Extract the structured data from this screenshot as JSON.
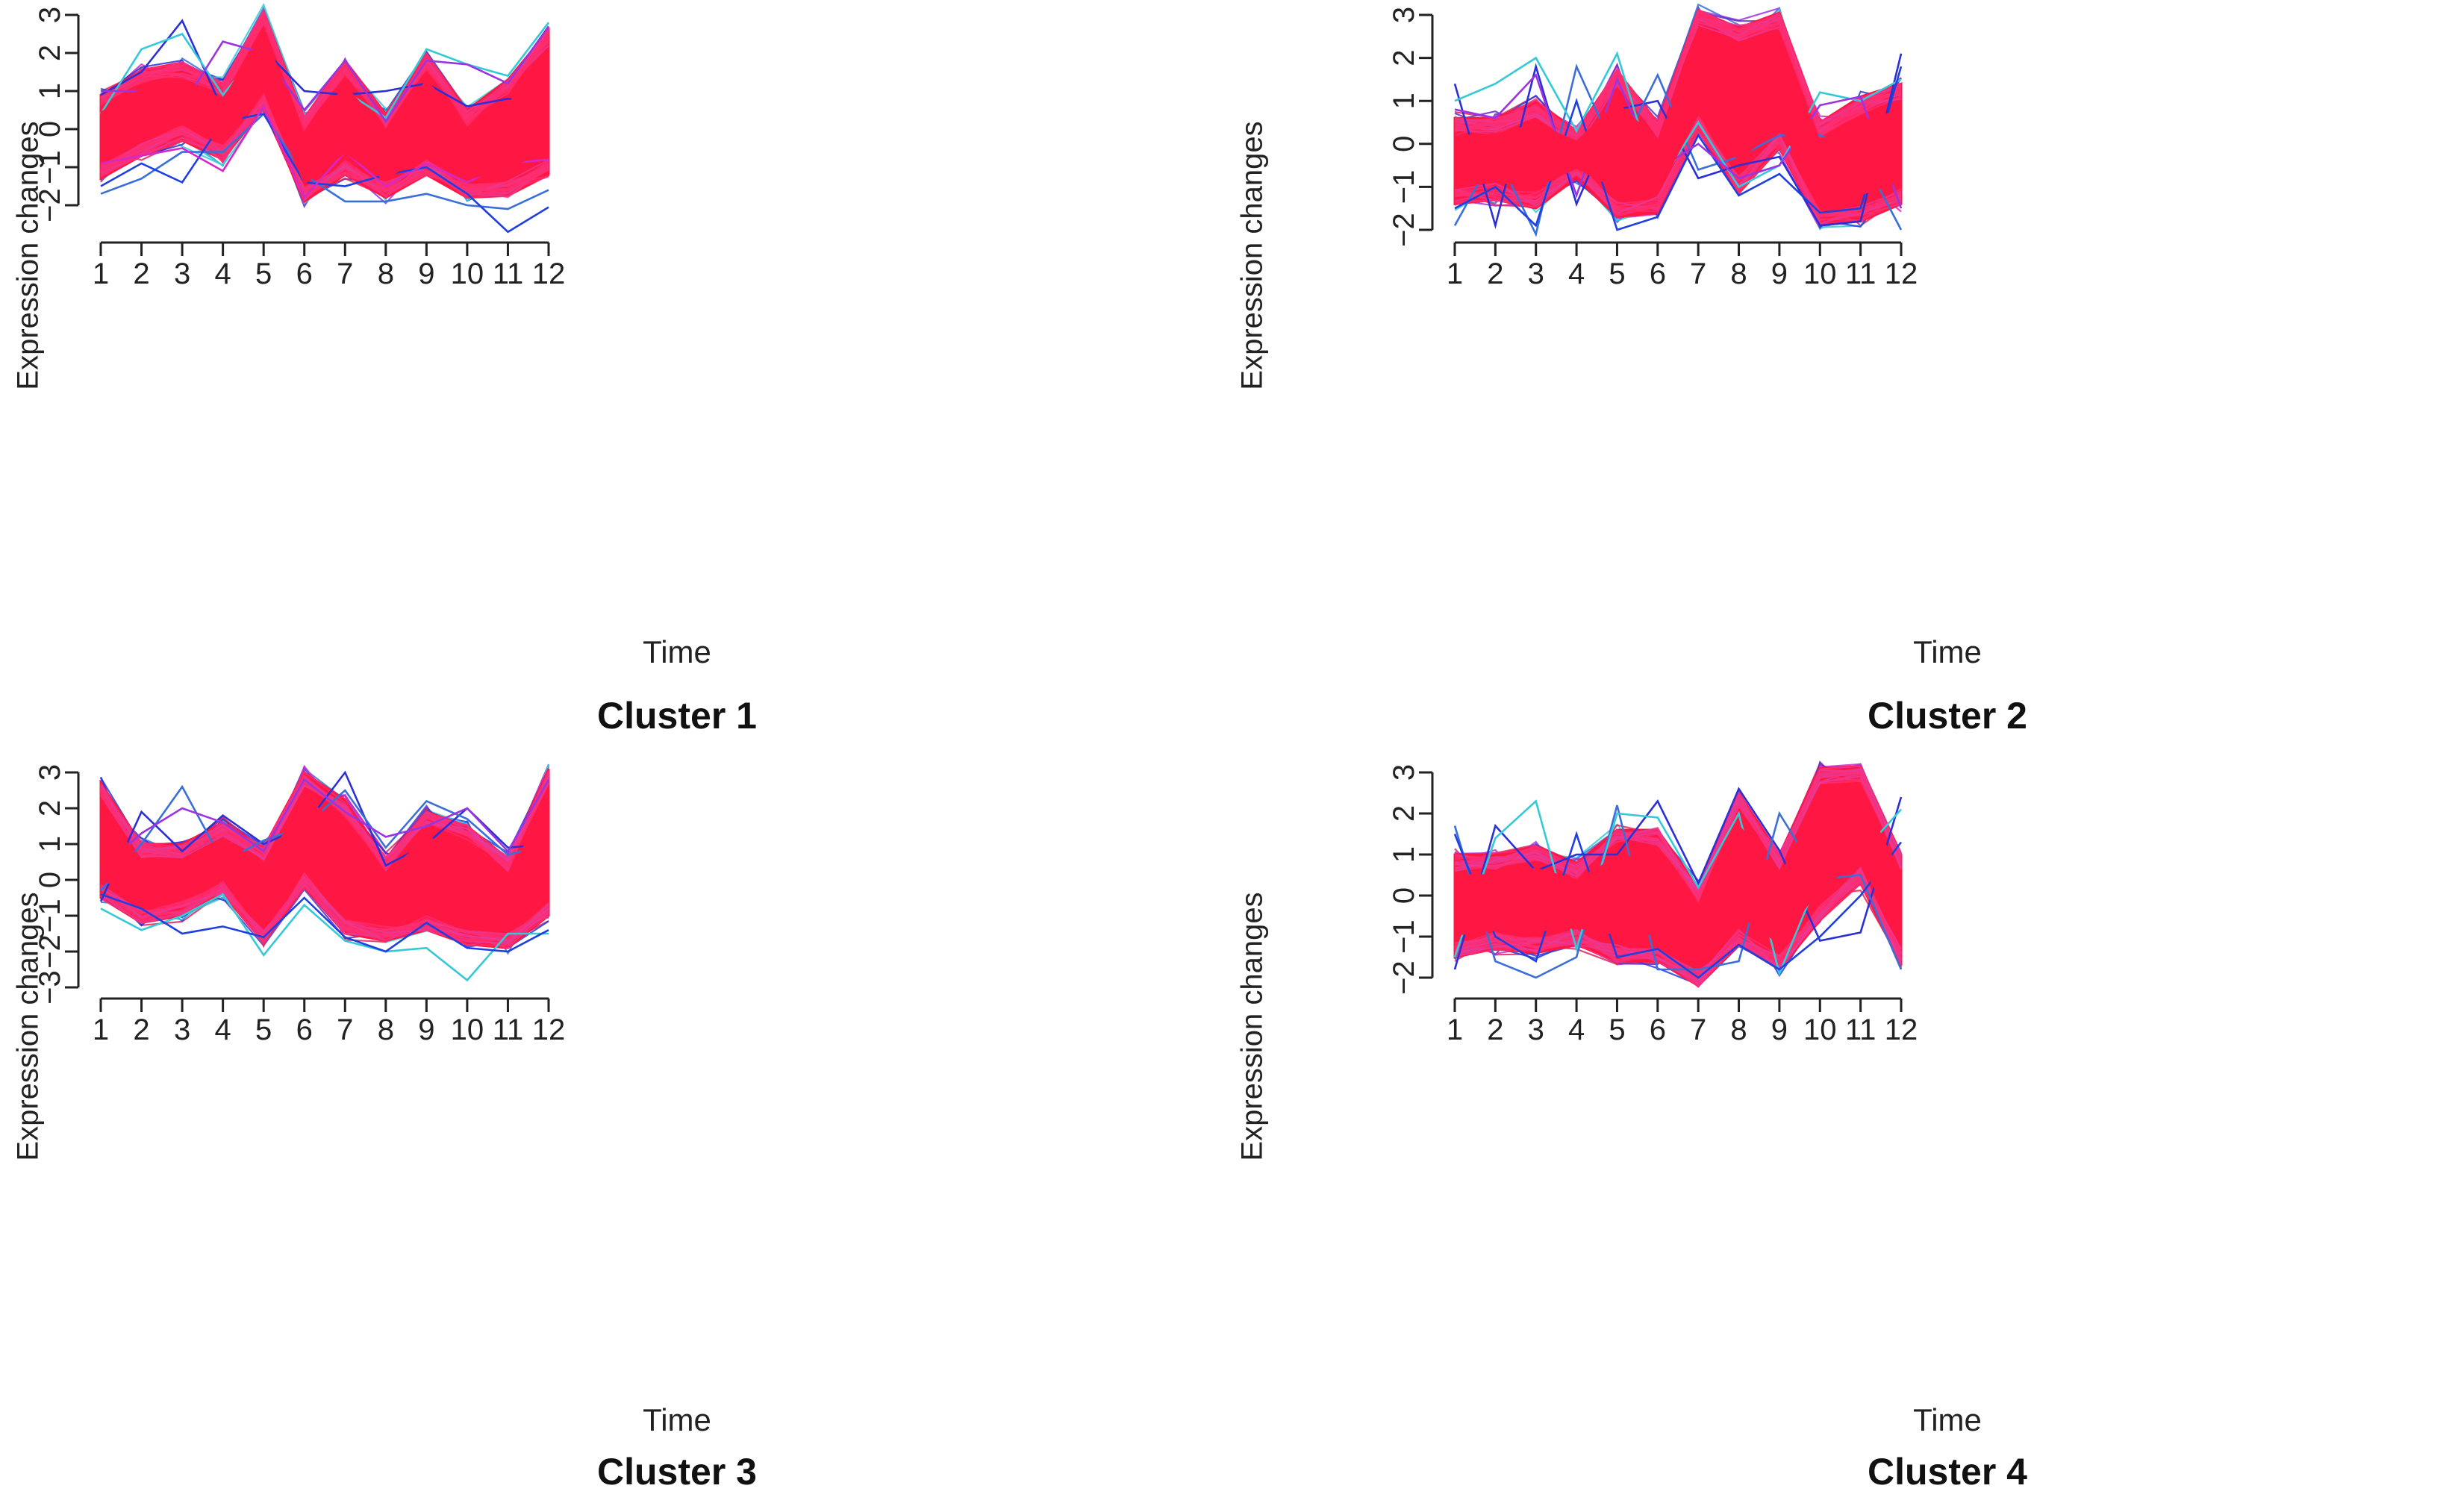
{
  "colors": {
    "main": "#ff1744",
    "palette": [
      "#2a2fd6",
      "#3a6fd8",
      "#35c9d8",
      "#1f3fe0",
      "#9b34e0",
      "#d428c8",
      "#e0245e",
      "#5a30c8"
    ],
    "axis": "#222222"
  },
  "chart_data": [
    {
      "type": "line",
      "title": "Cluster 1",
      "xlabel": "Time",
      "ylabel": "Expression changes",
      "x": [
        1,
        2,
        3,
        4,
        5,
        6,
        7,
        8,
        9,
        10,
        11,
        12
      ],
      "ylim": [
        -2,
        3
      ],
      "yticks": [
        -2,
        -1,
        0,
        1,
        2,
        3
      ],
      "band_upper": [
        0.9,
        1.55,
        1.75,
        1.2,
        3.1,
        0.3,
        1.8,
        0.4,
        1.95,
        0.5,
        1.3,
        2.6
      ],
      "band_lower": [
        -1.3,
        -0.7,
        -0.3,
        -0.8,
        0.55,
        -1.9,
        -1.2,
        -1.8,
        -1.2,
        -1.8,
        -1.75,
        -1.2
      ],
      "center": [
        -0.2,
        0.35,
        0.7,
        0.2,
        1.8,
        -0.8,
        0.2,
        -0.7,
        0.35,
        -0.6,
        -0.2,
        0.7
      ],
      "outliers": [
        {
          "values": [
            0.9,
            1.5,
            2.85,
            0.5,
            2.1,
            1.0,
            0.9,
            1.0,
            1.2,
            0.6,
            0.8,
            0.7
          ]
        },
        {
          "values": [
            -1.7,
            -1.3,
            -0.6,
            -0.6,
            0.4,
            -1.2,
            -1.9,
            -1.9,
            -1.7,
            -2.0,
            -2.1,
            -1.6
          ]
        },
        {
          "values": [
            0.4,
            2.1,
            2.5,
            0.9,
            2.2,
            -0.5,
            1.0,
            0.3,
            2.1,
            1.7,
            1.4,
            2.8
          ]
        },
        {
          "values": [
            -1.5,
            -0.9,
            -1.4,
            0.2,
            0.4,
            -1.4,
            -1.5,
            -1.2,
            -1.0,
            -1.7,
            -2.7,
            -2.05
          ]
        },
        {
          "values": [
            1.0,
            1.0,
            0.6,
            2.3,
            2.0,
            0.5,
            1.8,
            0.2,
            1.8,
            1.7,
            1.2,
            2.7
          ]
        },
        {
          "values": [
            -0.9,
            -0.7,
            -0.5,
            -1.1,
            0.6,
            -1.8,
            -0.6,
            -1.5,
            -0.9,
            -1.4,
            -0.9,
            -0.8
          ]
        }
      ]
    },
    {
      "type": "line",
      "title": "Cluster 2",
      "xlabel": "Time",
      "ylabel": "Expression changes",
      "x": [
        1,
        2,
        3,
        4,
        5,
        6,
        7,
        8,
        9,
        10,
        11,
        12
      ],
      "ylim": [
        -2,
        3
      ],
      "yticks": [
        -2,
        -1,
        0,
        1,
        2,
        3
      ],
      "band_upper": [
        0.6,
        0.6,
        1.0,
        0.3,
        1.7,
        0.5,
        3.1,
        2.7,
        3.05,
        0.5,
        1.1,
        1.4
      ],
      "band_lower": [
        -1.4,
        -1.3,
        -1.5,
        -0.8,
        -1.7,
        -1.6,
        0.3,
        -1.15,
        -0.1,
        -1.9,
        -1.8,
        -1.4
      ],
      "center": [
        -0.4,
        -0.3,
        -0.3,
        -0.25,
        -0.1,
        -0.5,
        1.2,
        0.7,
        1.2,
        -0.5,
        -0.3,
        -0.1
      ],
      "outliers": [
        {
          "values": [
            1.4,
            -1.9,
            1.8,
            -1.4,
            0.8,
            1.0,
            -0.8,
            -0.5,
            -0.3,
            -1.9,
            -1.8,
            2.1
          ]
        },
        {
          "values": [
            -1.9,
            -0.2,
            -2.1,
            1.8,
            -0.3,
            1.6,
            -0.6,
            -0.3,
            0.2,
            0.2,
            -0.2,
            -2.0
          ]
        },
        {
          "values": [
            1.0,
            1.4,
            2.0,
            0.3,
            2.1,
            -1.0,
            0.5,
            -1.0,
            -0.5,
            1.2,
            1.0,
            1.5
          ]
        },
        {
          "values": [
            -1.5,
            -1.0,
            -1.9,
            1.0,
            -2.0,
            -1.7,
            0.2,
            -1.2,
            -0.7,
            -1.6,
            -1.5,
            1.8
          ]
        },
        {
          "values": [
            0.8,
            0.6,
            1.6,
            -1.2,
            1.5,
            -0.6,
            0.0,
            -0.8,
            -0.5,
            0.9,
            1.1,
            -1.5
          ]
        }
      ]
    },
    {
      "type": "line",
      "title": "Cluster 3",
      "xlabel": "Time",
      "ylabel": "Expression changes",
      "x": [
        1,
        2,
        3,
        4,
        5,
        6,
        7,
        8,
        9,
        10,
        11,
        12
      ],
      "ylim": [
        -3,
        3
      ],
      "yticks": [
        -3,
        -2,
        -1,
        0,
        1,
        2,
        3
      ],
      "band_upper": [
        2.7,
        1.0,
        1.0,
        1.6,
        0.9,
        3.0,
        2.2,
        0.6,
        1.9,
        1.5,
        0.6,
        3.1
      ],
      "band_lower": [
        -0.5,
        -1.2,
        -1.0,
        -0.4,
        -1.75,
        -0.2,
        -1.5,
        -1.7,
        -1.4,
        -1.8,
        -1.9,
        -1.0
      ],
      "center": [
        0.9,
        -0.1,
        0.0,
        0.6,
        -0.4,
        1.3,
        0.3,
        -0.5,
        0.2,
        -0.2,
        -0.6,
        1.0
      ],
      "outliers": [
        {
          "values": [
            -0.6,
            1.9,
            0.8,
            1.8,
            1.0,
            1.5,
            3.0,
            0.4,
            1.0,
            2.0,
            0.9,
            1.0
          ]
        },
        {
          "values": [
            -0.3,
            1.0,
            2.6,
            0.5,
            1.1,
            1.5,
            2.5,
            0.9,
            2.2,
            1.7,
            0.7,
            1.0
          ]
        },
        {
          "values": [
            -0.8,
            -1.4,
            -1.0,
            -0.4,
            -2.1,
            -0.7,
            -1.7,
            -2.0,
            -1.9,
            -2.8,
            -1.5,
            -1.5
          ]
        },
        {
          "values": [
            -0.4,
            -0.8,
            -1.5,
            -1.3,
            -1.6,
            -0.5,
            -1.6,
            -2.0,
            -1.2,
            -1.9,
            -2.0,
            -1.4
          ]
        },
        {
          "values": [
            0.3,
            1.3,
            2.0,
            1.6,
            0.8,
            2.8,
            1.9,
            1.2,
            1.5,
            2.0,
            0.8,
            2.8
          ]
        }
      ]
    },
    {
      "type": "line",
      "title": "Cluster 4",
      "xlabel": "Time",
      "ylabel": "Expression changes",
      "x": [
        1,
        2,
        3,
        4,
        5,
        6,
        7,
        8,
        9,
        10,
        11,
        12
      ],
      "ylim": [
        -2,
        3
      ],
      "yticks": [
        -2,
        -1,
        0,
        1,
        2,
        3
      ],
      "band_upper": [
        1.0,
        1.0,
        1.2,
        0.8,
        1.6,
        1.6,
        0.2,
        2.5,
        1.0,
        3.1,
        3.15,
        1.0
      ],
      "band_lower": [
        -1.5,
        -1.3,
        -1.4,
        -1.2,
        -1.6,
        -1.6,
        -2.2,
        -1.2,
        -1.8,
        -0.6,
        0.3,
        -1.7
      ],
      "center": [
        -0.2,
        -0.2,
        -0.1,
        -0.2,
        0.0,
        0.0,
        -0.9,
        0.6,
        -0.3,
        1.3,
        1.6,
        -0.2
      ],
      "outliers": [
        {
          "values": [
            -1.8,
            1.7,
            0.6,
            1.0,
            1.0,
            2.3,
            0.3,
            2.6,
            1.1,
            -1.1,
            -0.9,
            2.4
          ]
        },
        {
          "values": [
            1.7,
            -1.6,
            -2.0,
            -1.5,
            2.2,
            -1.8,
            -1.8,
            -1.6,
            2.0,
            0.4,
            0.5,
            -1.8
          ]
        },
        {
          "values": [
            -1.5,
            1.4,
            2.3,
            -1.3,
            2.0,
            1.9,
            0.2,
            2.0,
            -1.9,
            0.5,
            1.0,
            2.1
          ]
        },
        {
          "values": [
            1.5,
            -1.0,
            -1.6,
            1.5,
            -1.5,
            -1.3,
            -2.0,
            -1.2,
            -1.8,
            -1.0,
            0.0,
            1.3
          ]
        }
      ]
    }
  ]
}
